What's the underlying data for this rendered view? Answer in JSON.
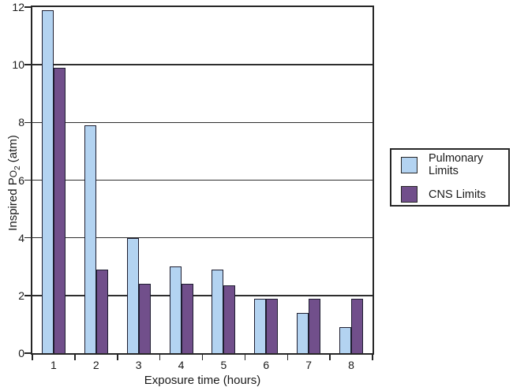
{
  "figure": {
    "background": "#ffffff",
    "ylabel_parts": {
      "prefix": "Inspired P",
      "ocap": "O",
      "sub": "2",
      "suffix": " (atm)"
    }
  },
  "chart_data": {
    "type": "bar",
    "categories": [
      "1",
      "2",
      "3",
      "4",
      "5",
      "6",
      "7",
      "8"
    ],
    "series": [
      {
        "name": "Pulmonary Limits",
        "color": "#b3d3f1",
        "values": [
          11.9,
          7.9,
          4.0,
          3.0,
          2.9,
          1.9,
          1.4,
          0.9
        ]
      },
      {
        "name": "CNS Limits",
        "color": "#714f8b",
        "values": [
          9.9,
          2.9,
          2.4,
          2.4,
          2.35,
          1.9,
          1.9,
          1.9
        ]
      }
    ],
    "xlabel": "Exposure time (hours)",
    "ylabel": "Inspired Po2 (atm)",
    "ylim": [
      0,
      12
    ],
    "yticks": [
      0,
      2,
      4,
      6,
      8,
      10,
      12
    ],
    "grid": true,
    "legend_position": "right",
    "axis_color": "#262626",
    "bar_border_color": "#1e1e30"
  }
}
